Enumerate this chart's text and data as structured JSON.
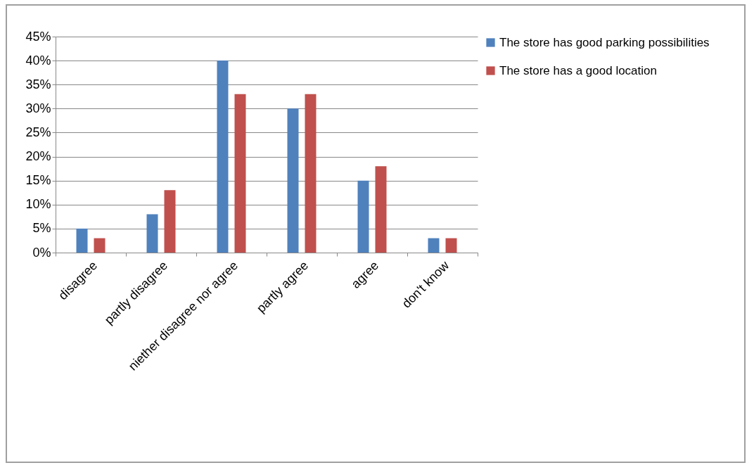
{
  "chart_data": {
    "type": "bar",
    "categories": [
      "disagree",
      "partly disagree",
      "niether disagree nor agree",
      "partly agree",
      "agree",
      "don't know"
    ],
    "series": [
      {
        "name": "The store has good parking possibilities",
        "color": "#4f81bd",
        "values": [
          5,
          8,
          40,
          30,
          15,
          3
        ]
      },
      {
        "name": "The store has a good location",
        "color": "#c0504d",
        "values": [
          3,
          13,
          33,
          33,
          18,
          3
        ]
      }
    ],
    "ylim": [
      0,
      45
    ],
    "yticks": [
      {
        "value": 0,
        "label": "0%"
      },
      {
        "value": 5,
        "label": "5%"
      },
      {
        "value": 10,
        "label": "10%"
      },
      {
        "value": 15,
        "label": "15%"
      },
      {
        "value": 20,
        "label": "20%"
      },
      {
        "value": 25,
        "label": "25%"
      },
      {
        "value": 30,
        "label": "30%"
      },
      {
        "value": 35,
        "label": "35%"
      },
      {
        "value": 40,
        "label": "40%"
      },
      {
        "value": 45,
        "label": "45%"
      }
    ],
    "grid": "y",
    "legend": "right"
  }
}
